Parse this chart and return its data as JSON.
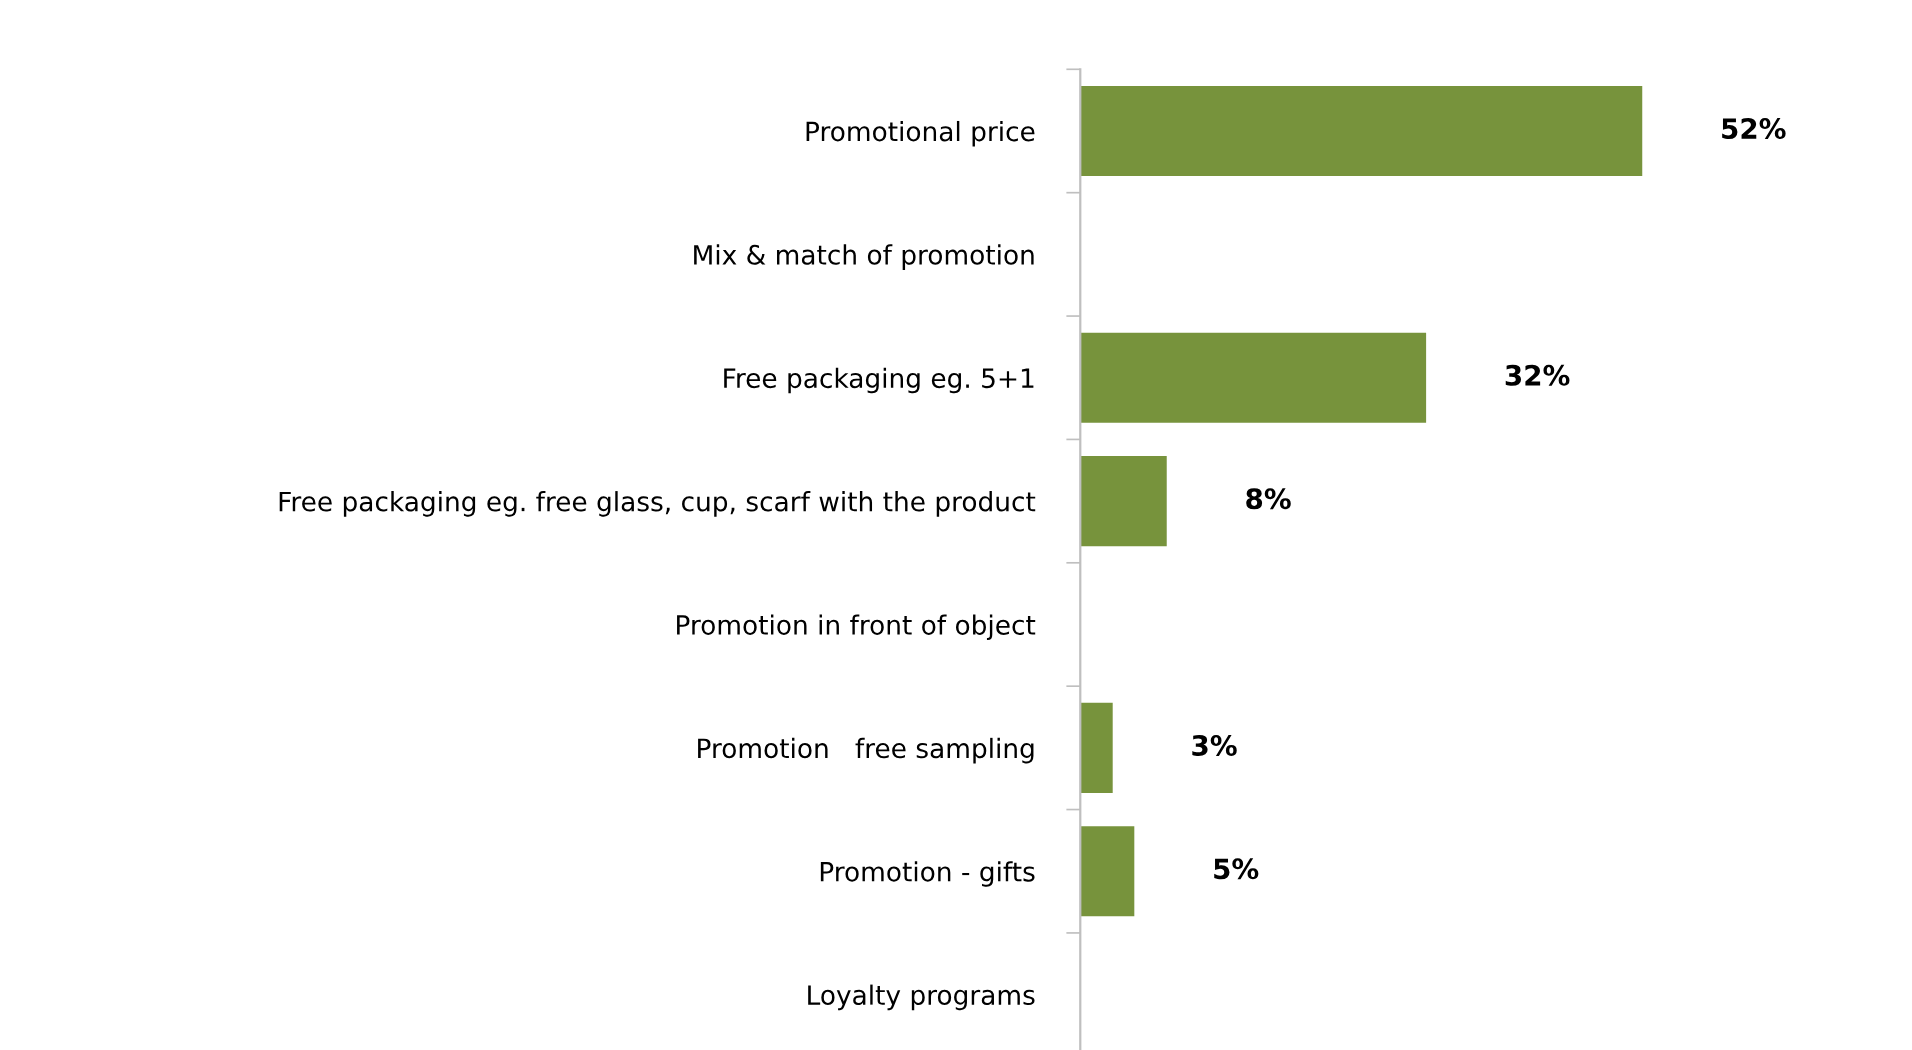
{
  "chart_data": {
    "type": "bar",
    "orientation": "horizontal",
    "categories": [
      "Promotional price",
      "Mix & match of promotion",
      "Free packaging eg. 5+1",
      "Free packaging eg. free glass, cup, scarf with the product",
      "Promotion in front of object",
      "Promotion   free sampling",
      "Promotion - gifts",
      "Loyalty programs"
    ],
    "values": [
      52,
      null,
      32,
      8,
      null,
      3,
      5,
      null
    ],
    "value_labels": [
      "52%",
      null,
      "32%",
      "8%",
      null,
      "3%",
      "5%",
      null
    ],
    "color": "#77933c",
    "tick_labels": "y",
    "grid": false,
    "legend": false
  }
}
